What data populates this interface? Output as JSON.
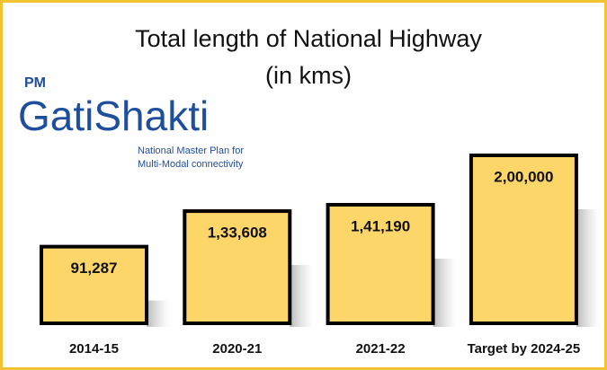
{
  "chart_data": {
    "type": "bar",
    "title": "Total length of National Highway",
    "subtitle": "(in kms)",
    "logo": {
      "prefix": "PM",
      "name": "GatiShakti",
      "tagline": [
        "National Master Plan for",
        "Multi-Modal connectivity"
      ]
    },
    "categories": [
      "2014-15",
      "2020-21",
      "2021-22",
      "Target by 2024-25"
    ],
    "values": [
      91287,
      133608,
      141190,
      200000
    ],
    "value_labels": [
      "91,287",
      "1,33,608",
      "1,41,190",
      "2,00,000"
    ],
    "color": "#fdd66a"
  }
}
